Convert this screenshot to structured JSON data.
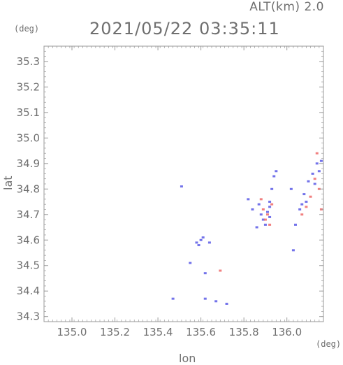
{
  "header": {
    "altitude_label": "ALT(km) 2.0",
    "datetime": "2021/05/22 03:35:11"
  },
  "chart_data": {
    "type": "scatter",
    "title": "2021/05/22 03:35:11",
    "xlabel": "lon",
    "ylabel": "lat",
    "x_unit": "(deg)",
    "y_unit": "(deg)",
    "xlim": [
      134.87,
      136.17
    ],
    "ylim": [
      34.28,
      35.36
    ],
    "x_ticks": [
      135.0,
      135.2,
      135.4,
      135.6,
      135.8,
      136.0
    ],
    "x_tick_labels": [
      "135.0",
      "135.2",
      "135.4",
      "135.6",
      "135.8",
      "136.0"
    ],
    "y_ticks": [
      34.3,
      34.4,
      34.5,
      34.6,
      34.7,
      34.8,
      34.9,
      35.0,
      35.1,
      35.2,
      35.3
    ],
    "y_tick_labels": [
      "34.3",
      "34.4",
      "34.5",
      "34.6",
      "34.7",
      "34.8",
      "34.9",
      "35.0",
      "35.1",
      "35.2",
      "35.3"
    ],
    "grid": false,
    "colors": {
      "approaching": "#5a5ae6",
      "receding": "#ee6a6a",
      "axis": "#9a9a9a"
    },
    "series": [
      {
        "color_key": "approaching",
        "points": [
          [
            135.51,
            34.81
          ],
          [
            135.58,
            34.59
          ],
          [
            135.59,
            34.58
          ],
          [
            135.6,
            34.6
          ],
          [
            135.61,
            34.61
          ],
          [
            135.64,
            34.59
          ],
          [
            135.62,
            34.47
          ],
          [
            135.55,
            34.51
          ],
          [
            135.47,
            34.37
          ],
          [
            135.62,
            34.37
          ],
          [
            135.67,
            34.36
          ],
          [
            135.72,
            34.35
          ],
          [
            135.82,
            34.76
          ],
          [
            135.84,
            34.72
          ],
          [
            135.87,
            34.74
          ],
          [
            135.88,
            34.7
          ],
          [
            135.89,
            34.68
          ],
          [
            135.9,
            34.66
          ],
          [
            135.92,
            34.69
          ],
          [
            135.92,
            34.75
          ],
          [
            135.93,
            34.8
          ],
          [
            135.94,
            34.85
          ],
          [
            135.95,
            34.87
          ],
          [
            135.92,
            34.73
          ],
          [
            135.91,
            34.71
          ],
          [
            135.86,
            34.65
          ],
          [
            136.02,
            34.8
          ],
          [
            136.03,
            34.56
          ],
          [
            136.04,
            34.66
          ],
          [
            136.07,
            34.74
          ],
          [
            136.08,
            34.78
          ],
          [
            136.1,
            34.83
          ],
          [
            136.12,
            34.86
          ],
          [
            136.14,
            34.9
          ],
          [
            136.16,
            34.91
          ],
          [
            136.15,
            34.87
          ],
          [
            136.13,
            34.82
          ],
          [
            136.09,
            34.75
          ],
          [
            136.06,
            34.72
          ]
        ]
      },
      {
        "color_key": "receding",
        "points": [
          [
            135.69,
            34.48
          ],
          [
            135.88,
            34.76
          ],
          [
            135.89,
            34.72
          ],
          [
            135.91,
            34.7
          ],
          [
            135.9,
            34.68
          ],
          [
            135.93,
            34.74
          ],
          [
            135.92,
            34.66
          ],
          [
            136.14,
            34.94
          ],
          [
            136.13,
            34.84
          ],
          [
            136.15,
            34.8
          ],
          [
            136.11,
            34.77
          ],
          [
            136.09,
            34.73
          ],
          [
            136.07,
            34.7
          ],
          [
            136.16,
            34.72
          ]
        ]
      }
    ]
  }
}
